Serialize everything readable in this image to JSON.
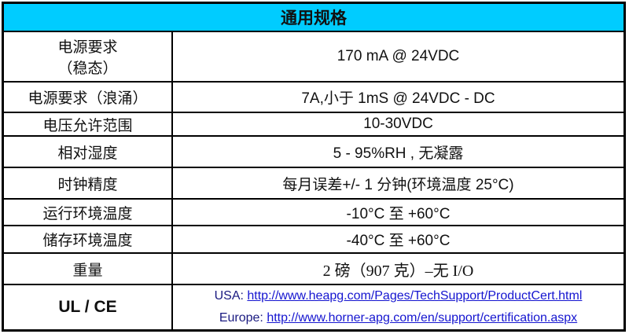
{
  "title": "通用规格",
  "rows": [
    {
      "label": "电源要求",
      "label2": "（稳态）",
      "value": "170 mA @ 24VDC"
    },
    {
      "label": "电源要求（浪涌）",
      "value": "7A,小于  1mS @ 24VDC - DC"
    },
    {
      "label": "电压允许范围",
      "value": "10-30VDC"
    },
    {
      "label": "相对湿度",
      "value": "5 - 95%RH , 无凝露"
    },
    {
      "label": "时钟精度",
      "value": "每月误差+/- 1 分钟(环境温度 25°C)"
    },
    {
      "label": "运行环境温度",
      "value": "-10°C  至  +60°C"
    },
    {
      "label": "储存环境温度",
      "value": "-40°C  至  +60°C"
    },
    {
      "label": "重量",
      "value": "2 磅（907 克）–无 I/O"
    }
  ],
  "cert": {
    "label": "UL / CE",
    "usa_prefix": "USA: ",
    "usa_link": "http://www.heapg.com/Pages/TechSupport/ProductCert.html",
    "eu_prefix": "Europe: ",
    "eu_link": "http://www.horner-apg.com/en/support/certification.aspx"
  },
  "colors": {
    "header": "#00CCFF",
    "link": "#1515D0"
  }
}
